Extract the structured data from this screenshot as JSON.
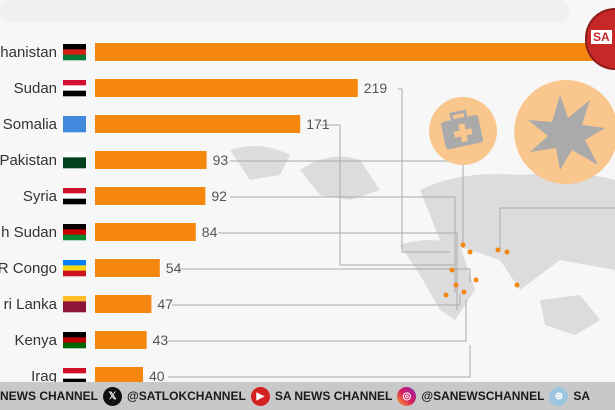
{
  "chart_data": {
    "type": "bar",
    "orientation": "horizontal",
    "categories": [
      "Afghanistan",
      "Sudan",
      "Somalia",
      "Pakistan",
      "Syria",
      "South Sudan",
      "DR Congo",
      "Sri Lanka",
      "Kenya",
      "Iraq"
    ],
    "visible_labels": [
      "hanistan",
      "Sudan",
      "Somalia",
      "Pakistan",
      "Syria",
      "h Sudan",
      "R Congo",
      "ri Lanka",
      "Kenya",
      "Irag"
    ],
    "values": [
      null,
      219,
      171,
      93,
      92,
      84,
      54,
      47,
      43,
      40
    ],
    "value_labels": [
      "",
      "219",
      "171",
      "93",
      "92",
      "84",
      "54",
      "47",
      "43",
      "40"
    ],
    "bar_color": "#f5860f",
    "icons": [
      "medical-kit-icon",
      "explosion-icon"
    ],
    "background": "world-map"
  },
  "ticker": {
    "items": [
      "NEWS CHANNEL",
      "@SATLOKCHANNEL",
      "SA NEWS CHANNEL",
      "@SANEWSCHANNEL",
      "SA"
    ],
    "icons": [
      "x-icon",
      "youtube-icon",
      "instagram-icon",
      "globe-icon"
    ]
  },
  "logo": {
    "text": "SA"
  }
}
